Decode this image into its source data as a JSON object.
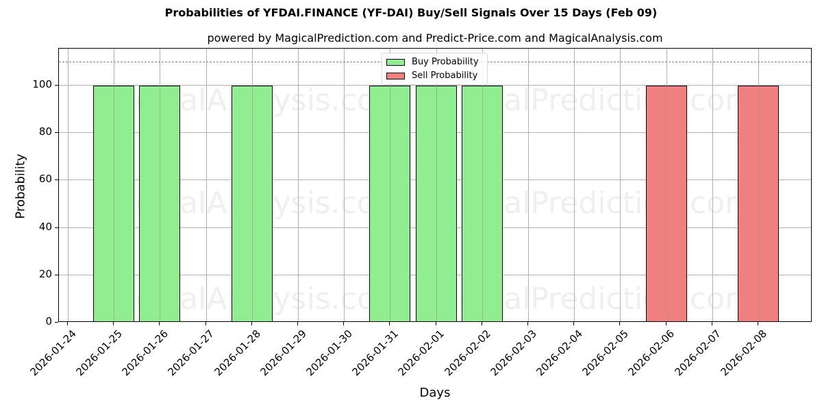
{
  "header": {
    "title": "Probabilities of YFDAI.FINANCE (YF-DAI) Buy/Sell Signals Over 15 Days (Feb 09)",
    "subtitle": "powered by MagicalPrediction.com and Predict-Price.com and MagicalAnalysis.com"
  },
  "axes": {
    "xlabel": "Days",
    "ylabel": "Probability",
    "yticks": [
      "0",
      "20",
      "40",
      "60",
      "80",
      "100"
    ]
  },
  "legend": {
    "buy_label": "Buy Probability",
    "sell_label": "Sell Probability"
  },
  "watermarks": [
    "MagicalAnalysis.com",
    "MagicalPrediction.com"
  ],
  "colors": {
    "buy": "#90ee90",
    "sell": "#f08080",
    "grid": "#b0b0b0",
    "threshold_line": "#808080"
  },
  "chart_data": {
    "type": "bar",
    "title": "Probabilities of YFDAI.FINANCE (YF-DAI) Buy/Sell Signals Over 15 Days (Feb 09)",
    "subtitle": "powered by MagicalPrediction.com and Predict-Price.com and MagicalAnalysis.com",
    "xlabel": "Days",
    "ylabel": "Probability",
    "ylim": [
      0,
      115.6
    ],
    "yticks": [
      0,
      20,
      40,
      60,
      80,
      100
    ],
    "grid": true,
    "legend_position": "upper center",
    "threshold_line": {
      "y": 110,
      "style": "dashed",
      "color": "#808080"
    },
    "categories": [
      "2026-01-24",
      "2026-01-25",
      "2026-01-26",
      "2026-01-27",
      "2026-01-28",
      "2026-01-29",
      "2026-01-30",
      "2026-01-31",
      "2026-02-01",
      "2026-02-02",
      "2026-02-03",
      "2026-02-04",
      "2026-02-05",
      "2026-02-06",
      "2026-02-07",
      "2026-02-08"
    ],
    "series": [
      {
        "name": "Buy Probability",
        "color": "#90ee90",
        "values": [
          0,
          100,
          100,
          0,
          100,
          0,
          0,
          100,
          100,
          100,
          0,
          0,
          0,
          0,
          0,
          0
        ]
      },
      {
        "name": "Sell Probability",
        "color": "#f08080",
        "values": [
          0,
          0,
          0,
          0,
          0,
          0,
          0,
          0,
          0,
          0,
          0,
          0,
          0,
          100,
          0,
          100
        ]
      }
    ]
  }
}
